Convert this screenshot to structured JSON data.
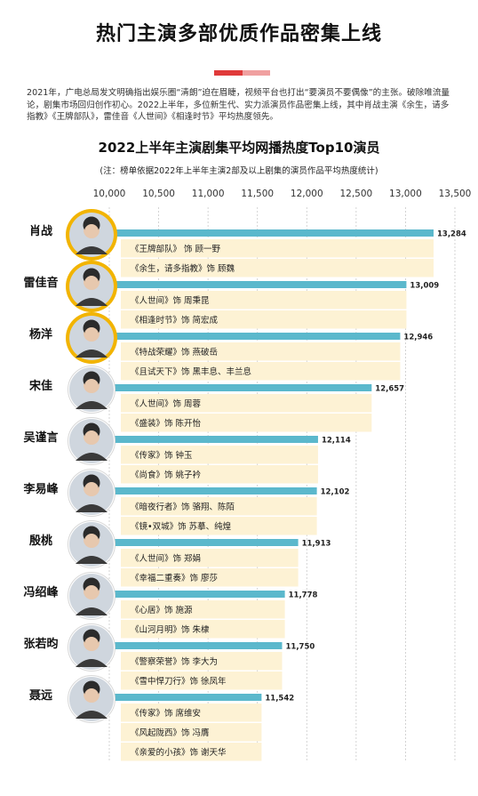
{
  "headline": "热门主演多部优质作品密集上线",
  "intro": "2021年，广电总局发文明确指出娱乐圈“清朗”迫在眉睫，视频平台也打出“要演员不要偶像”的主张。破除唯流量论，剧集市场回归创作初心。2022上半年，多位新生代、实力派演员作品密集上线，其中肖战主演《余生，请多指教》《王牌部队》，雷佳音《人世间》《相逢时节》平均热度领先。",
  "colors": {
    "bar": "#5bb8cc",
    "panel": "#fdf2d4",
    "ring": "#f2b400",
    "accent_red": "#e03a3a",
    "accent_pink": "#f0a0a0"
  },
  "chart_data": {
    "type": "bar",
    "orientation": "horizontal",
    "title": "2022上半年主演剧集平均网播热度Top10演员",
    "subtitle": "(注：榜单依据2022年上半年主演2部及以上剧集的演员作品平均热度统计)",
    "xlim": [
      10000,
      13500
    ],
    "ticks": [
      10000,
      10500,
      11000,
      11500,
      12000,
      12500,
      13000,
      13500
    ],
    "tick_labels": [
      "10,000",
      "10,500",
      "11,000",
      "11,500",
      "12,000",
      "12,500",
      "13,000",
      "13,500"
    ],
    "grid": true,
    "actors": [
      {
        "name": "肖战",
        "value": 13284,
        "value_label": "13,284",
        "highlight": true,
        "works": [
          "《王牌部队》 饰 顾一野",
          "《余生，请多指教》饰 顾魏"
        ]
      },
      {
        "name": "雷佳音",
        "value": 13009,
        "value_label": "13,009",
        "highlight": true,
        "works": [
          "《人世间》饰 周秉昆",
          "《相逢时节》饰 简宏成"
        ]
      },
      {
        "name": "杨洋",
        "value": 12946,
        "value_label": "12,946",
        "highlight": true,
        "works": [
          "《特战荣耀》饰 燕破岳",
          "《且试天下》饰  黑丰息、丰兰息"
        ]
      },
      {
        "name": "宋佳",
        "value": 12657,
        "value_label": "12,657",
        "highlight": false,
        "works": [
          "《人世间》饰 周蓉",
          "《盛装》饰 陈开怡"
        ]
      },
      {
        "name": "吴谨言",
        "value": 12114,
        "value_label": "12,114",
        "highlight": false,
        "works": [
          "《传家》饰 钟玉",
          "《尚食》饰 姚子衿"
        ]
      },
      {
        "name": "李易峰",
        "value": 12102,
        "value_label": "12,102",
        "highlight": false,
        "works": [
          "《暗夜行者》饰 骆翔、陈陌",
          "《镜•双城》饰 苏摹、纯煌"
        ]
      },
      {
        "name": "殷桃",
        "value": 11913,
        "value_label": "11,913",
        "highlight": false,
        "works": [
          "《人世间》饰 郑娟",
          "《幸福二重奏》饰 廖莎"
        ]
      },
      {
        "name": "冯绍峰",
        "value": 11778,
        "value_label": "11,778",
        "highlight": false,
        "works": [
          "《心居》饰 施源",
          "《山河月明》饰 朱棣"
        ]
      },
      {
        "name": "张若昀",
        "value": 11750,
        "value_label": "11,750",
        "highlight": false,
        "works": [
          "《警察荣誉》饰 李大为",
          "《雪中悍刀行》饰 徐凤年"
        ]
      },
      {
        "name": "聂远",
        "value": 11542,
        "value_label": "11,542",
        "highlight": false,
        "works": [
          "《传家》饰 席维安",
          "《风起陇西》饰 冯膺",
          "《亲爱的小孩》饰 谢天华"
        ]
      }
    ]
  }
}
